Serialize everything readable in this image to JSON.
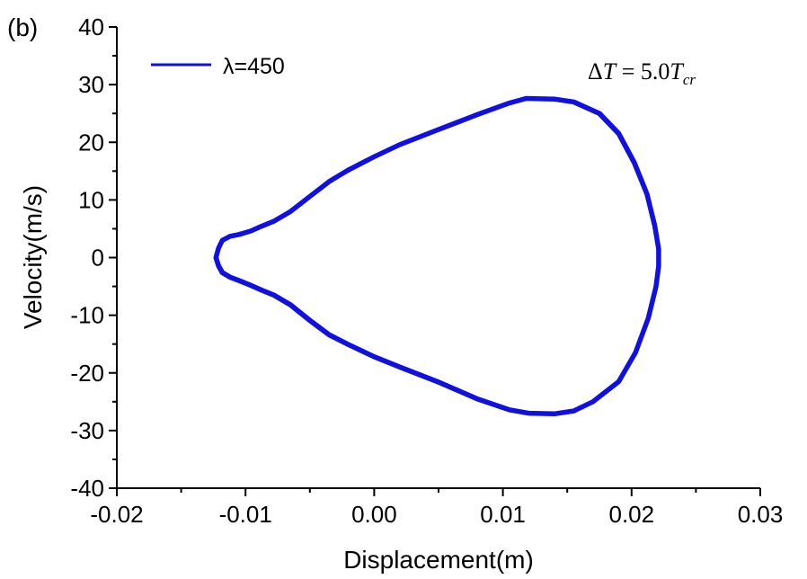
{
  "panel_label": "(b)",
  "chart_data": {
    "type": "line",
    "xlabel": "Displacement(m)",
    "ylabel": "Velocity(m/s)",
    "xlim": [
      -0.02,
      0.03
    ],
    "ylim": [
      -40,
      40
    ],
    "xticks": [
      -0.02,
      -0.01,
      0.0,
      0.01,
      0.02,
      0.03
    ],
    "xtick_labels": [
      "-0.02",
      "-0.01",
      "0.00",
      "0.01",
      "0.02",
      "0.03"
    ],
    "yticks": [
      -40,
      -30,
      -20,
      -10,
      0,
      10,
      20,
      30,
      40
    ],
    "ytick_labels": [
      "-40",
      "-30",
      "-20",
      "-10",
      "0",
      "10",
      "20",
      "30",
      "40"
    ],
    "legend_position": "top-left",
    "annotation": {
      "delta": "Δ",
      "T": "T",
      "equals": " = 5.0",
      "T2": "T",
      "subscript": "cr"
    },
    "series": [
      {
        "name": "λ=450",
        "color": "#1010e0",
        "x": [
          -0.0123,
          -0.0121,
          -0.0118,
          -0.0112,
          -0.0105,
          -0.0096,
          -0.0088,
          -0.0078,
          -0.0065,
          -0.005,
          -0.0035,
          -0.002,
          0.0,
          0.002,
          0.005,
          0.008,
          0.0105,
          0.0118,
          0.014,
          0.0155,
          0.0175,
          0.019,
          0.0202,
          0.0212,
          0.0218,
          0.0221,
          0.0221,
          0.0219,
          0.0213,
          0.0203,
          0.019,
          0.017,
          0.0155,
          0.014,
          0.012,
          0.0105,
          0.008,
          0.005,
          0.002,
          0.0,
          -0.002,
          -0.0035,
          -0.005,
          -0.0065,
          -0.0078,
          -0.0088,
          -0.0096,
          -0.0105,
          -0.0112,
          -0.0118,
          -0.0121,
          -0.0123
        ],
        "y": [
          0,
          1.6,
          3.0,
          3.7,
          4.0,
          4.6,
          5.4,
          6.3,
          8.0,
          10.6,
          13.2,
          15.2,
          17.5,
          19.6,
          22.2,
          24.8,
          26.8,
          27.6,
          27.5,
          27.0,
          25.0,
          21.5,
          16.5,
          11.0,
          5.5,
          1.5,
          -1.5,
          -5.0,
          -10.5,
          -16.5,
          -21.5,
          -25.0,
          -26.6,
          -27.1,
          -27.0,
          -26.4,
          -24.5,
          -21.6,
          -19.0,
          -17.2,
          -15.1,
          -13.4,
          -10.9,
          -8.2,
          -6.5,
          -5.6,
          -4.8,
          -4.0,
          -3.4,
          -2.6,
          -1.4,
          0
        ]
      }
    ]
  }
}
